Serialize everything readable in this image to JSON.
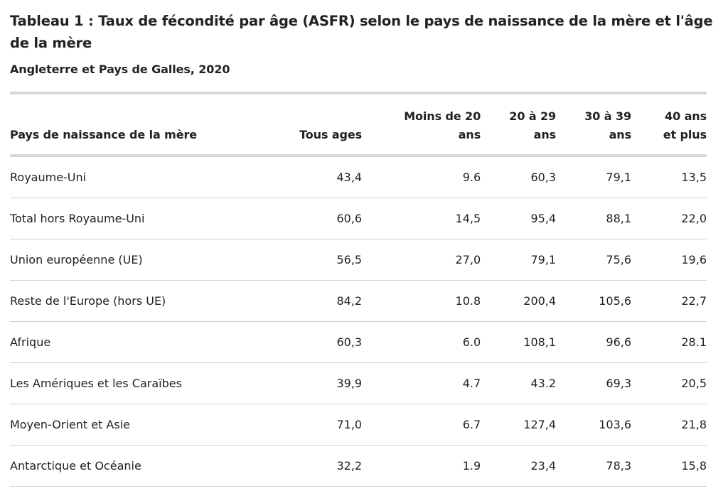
{
  "title": "Tableau 1 : Taux de fécondité par âge (ASFR) selon le pays de naissance de la mère et l'âge de la mère",
  "subtitle": "Angleterre et Pays de Galles, 2020",
  "table": {
    "headers": {
      "country": "Pays de naissance de la mère",
      "all_ages": "Tous ages",
      "under20": "Moins de 20 ans",
      "age_20_29": "20 à 29 ans",
      "age_30_39": "30 à 39 ans",
      "age_40_plus": "40 ans et plus"
    },
    "rows": [
      {
        "country": "Royaume-Uni",
        "all_ages": "43,4",
        "under20": "9.6",
        "age_20_29": "60,3",
        "age_30_39": "79,1",
        "age_40_plus": "13,5"
      },
      {
        "country": "Total hors Royaume-Uni",
        "all_ages": "60,6",
        "under20": "14,5",
        "age_20_29": "95,4",
        "age_30_39": "88,1",
        "age_40_plus": "22,0"
      },
      {
        "country": "Union européenne (UE)",
        "all_ages": "56,5",
        "under20": "27,0",
        "age_20_29": "79,1",
        "age_30_39": "75,6",
        "age_40_plus": "19,6"
      },
      {
        "country": "Reste de l'Europe (hors UE)",
        "all_ages": "84,2",
        "under20": "10.8",
        "age_20_29": "200,4",
        "age_30_39": "105,6",
        "age_40_plus": "22,7"
      },
      {
        "country": "Afrique",
        "all_ages": "60,3",
        "under20": "6.0",
        "age_20_29": "108,1",
        "age_30_39": "96,6",
        "age_40_plus": "28.1"
      },
      {
        "country": "Les Amériques et les Caraïbes",
        "all_ages": "39,9",
        "under20": "4.7",
        "age_20_29": "43.2",
        "age_30_39": "69,3",
        "age_40_plus": "20,5"
      },
      {
        "country": "Moyen-Orient et Asie",
        "all_ages": "71,0",
        "under20": "6.7",
        "age_20_29": "127,4",
        "age_30_39": "103,6",
        "age_40_plus": "21,8"
      },
      {
        "country": "Antarctique et Océanie",
        "all_ages": "32,2",
        "under20": "1.9",
        "age_20_29": "23,4",
        "age_30_39": "78,3",
        "age_40_plus": "15,8"
      }
    ]
  }
}
